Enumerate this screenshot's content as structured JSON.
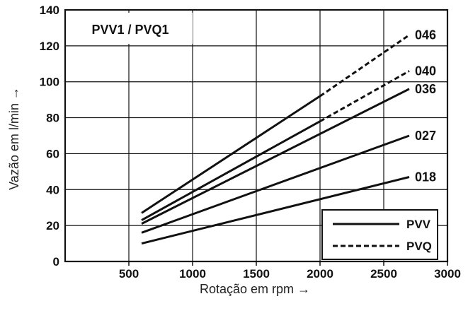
{
  "chart_data": {
    "type": "line",
    "title": "PVV1 / PVQ1",
    "xlabel": "Rotação em rpm →",
    "ylabel": "Vazão em l/min →",
    "xlim": [
      0,
      3000
    ],
    "ylim": [
      0,
      140
    ],
    "x_ticks": [
      500,
      1000,
      1500,
      2000,
      2500,
      3000
    ],
    "y_ticks": [
      0,
      20,
      40,
      60,
      80,
      100,
      120,
      140
    ],
    "grid": true,
    "series": [
      {
        "name": "046",
        "points": [
          [
            600,
            27
          ],
          [
            2000,
            92
          ],
          [
            2700,
            126
          ]
        ],
        "solid_until": 2000
      },
      {
        "name": "040",
        "points": [
          [
            600,
            23
          ],
          [
            2000,
            78
          ],
          [
            2700,
            106
          ]
        ],
        "solid_until": 2000
      },
      {
        "name": "036",
        "points": [
          [
            600,
            21
          ],
          [
            2700,
            96
          ]
        ],
        "solid_until": 2700
      },
      {
        "name": "027",
        "points": [
          [
            600,
            16
          ],
          [
            2700,
            70
          ]
        ],
        "solid_until": 2700
      },
      {
        "name": "018",
        "points": [
          [
            600,
            10
          ],
          [
            2700,
            47
          ]
        ],
        "solid_until": 2700
      }
    ],
    "legend": {
      "position": "bottom-right",
      "entries": [
        {
          "label": "PVV",
          "style": "solid"
        },
        {
          "label": "PVQ",
          "style": "dashed"
        }
      ]
    },
    "colors": {
      "line": "#111111",
      "grid": "#111111",
      "background": "#ffffff"
    }
  }
}
